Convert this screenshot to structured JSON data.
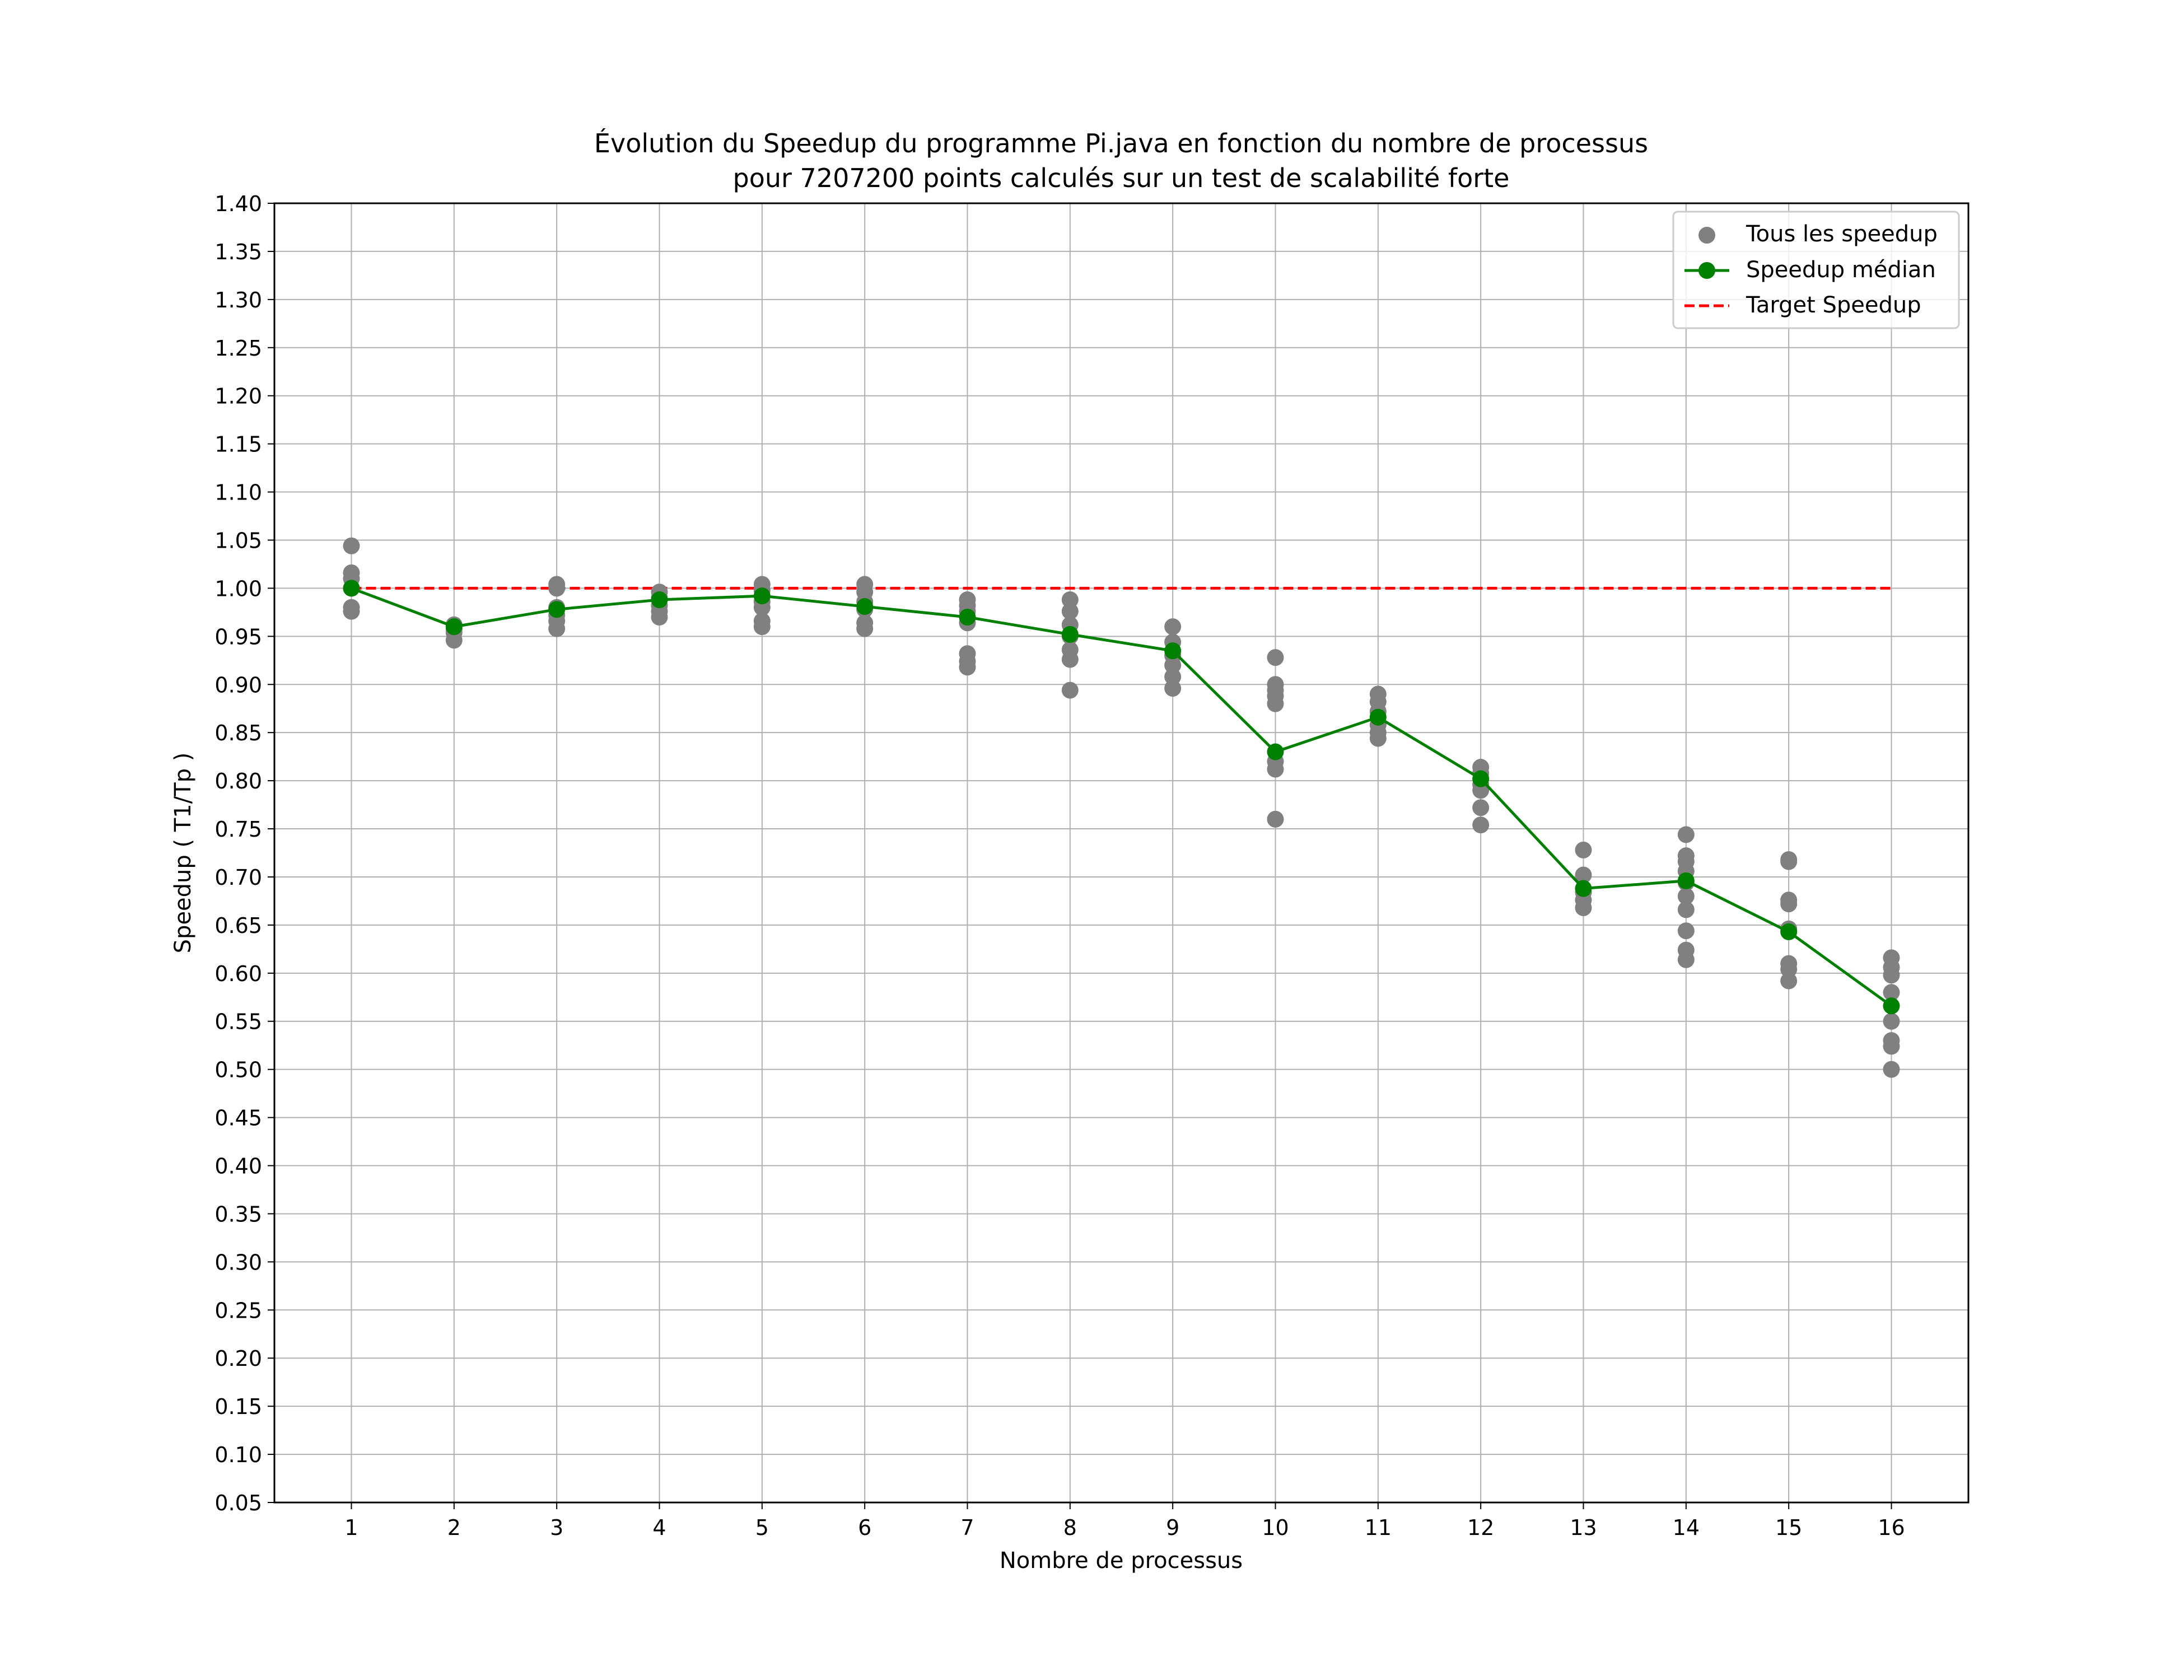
{
  "chart_data": {
    "type": "scatter",
    "title_line1": "Évolution du Speedup du programme Pi.java en fonction du nombre de processus",
    "title_line2": "pour 7207200 points calculés sur un test de scalabilité forte",
    "xlabel": "Nombre de processus",
    "ylabel": "Speedup ( T1/Tp )",
    "x_ticks": [
      1,
      2,
      3,
      4,
      5,
      6,
      7,
      8,
      9,
      10,
      11,
      12,
      13,
      14,
      15,
      16
    ],
    "y_ticks": [
      "0.05",
      "0.10",
      "0.15",
      "0.20",
      "0.25",
      "0.30",
      "0.35",
      "0.40",
      "0.45",
      "0.50",
      "0.55",
      "0.60",
      "0.65",
      "0.70",
      "0.75",
      "0.80",
      "0.85",
      "0.90",
      "0.95",
      "1.00",
      "1.05",
      "1.10",
      "1.15",
      "1.20",
      "1.25",
      "1.30",
      "1.35",
      "1.40"
    ],
    "xlim": [
      0.25,
      16.75
    ],
    "ylim": [
      0.05,
      1.4
    ],
    "grid": true,
    "legend_position": "top-right",
    "series": [
      {
        "name": "Tous les speedup",
        "kind": "scatter",
        "color": "#808080",
        "points": [
          [
            1,
            1.044
          ],
          [
            1,
            1.016
          ],
          [
            1,
            1.01
          ],
          [
            1,
            1.0
          ],
          [
            1,
            0.98
          ],
          [
            1,
            0.976
          ],
          [
            2,
            0.962
          ],
          [
            2,
            0.958
          ],
          [
            2,
            0.954
          ],
          [
            2,
            0.946
          ],
          [
            3,
            1.004
          ],
          [
            3,
            1.0
          ],
          [
            3,
            0.98
          ],
          [
            3,
            0.972
          ],
          [
            3,
            0.966
          ],
          [
            3,
            0.958
          ],
          [
            4,
            0.996
          ],
          [
            4,
            0.99
          ],
          [
            4,
            0.982
          ],
          [
            4,
            0.976
          ],
          [
            4,
            0.97
          ],
          [
            5,
            1.004
          ],
          [
            5,
            0.998
          ],
          [
            5,
            0.986
          ],
          [
            5,
            0.98
          ],
          [
            5,
            0.966
          ],
          [
            5,
            0.96
          ],
          [
            6,
            1.004
          ],
          [
            6,
            0.996
          ],
          [
            6,
            0.986
          ],
          [
            6,
            0.978
          ],
          [
            6,
            0.964
          ],
          [
            6,
            0.958
          ],
          [
            7,
            0.988
          ],
          [
            7,
            0.982
          ],
          [
            7,
            0.976
          ],
          [
            7,
            0.964
          ],
          [
            7,
            0.932
          ],
          [
            7,
            0.924
          ],
          [
            7,
            0.918
          ],
          [
            8,
            0.988
          ],
          [
            8,
            0.976
          ],
          [
            8,
            0.962
          ],
          [
            8,
            0.95
          ],
          [
            8,
            0.936
          ],
          [
            8,
            0.926
          ],
          [
            8,
            0.894
          ],
          [
            9,
            0.96
          ],
          [
            9,
            0.944
          ],
          [
            9,
            0.93
          ],
          [
            9,
            0.92
          ],
          [
            9,
            0.908
          ],
          [
            9,
            0.896
          ],
          [
            10,
            0.928
          ],
          [
            10,
            0.9
          ],
          [
            10,
            0.894
          ],
          [
            10,
            0.888
          ],
          [
            10,
            0.88
          ],
          [
            10,
            0.82
          ],
          [
            10,
            0.812
          ],
          [
            10,
            0.76
          ],
          [
            11,
            0.89
          ],
          [
            11,
            0.882
          ],
          [
            11,
            0.872
          ],
          [
            11,
            0.858
          ],
          [
            11,
            0.85
          ],
          [
            11,
            0.844
          ],
          [
            12,
            0.814
          ],
          [
            12,
            0.808
          ],
          [
            12,
            0.796
          ],
          [
            12,
            0.79
          ],
          [
            12,
            0.772
          ],
          [
            12,
            0.754
          ],
          [
            13,
            0.728
          ],
          [
            13,
            0.702
          ],
          [
            13,
            0.684
          ],
          [
            13,
            0.676
          ],
          [
            13,
            0.668
          ],
          [
            14,
            0.744
          ],
          [
            14,
            0.722
          ],
          [
            14,
            0.716
          ],
          [
            14,
            0.706
          ],
          [
            14,
            0.694
          ],
          [
            14,
            0.68
          ],
          [
            14,
            0.666
          ],
          [
            14,
            0.644
          ],
          [
            14,
            0.624
          ],
          [
            14,
            0.614
          ],
          [
            15,
            0.718
          ],
          [
            15,
            0.716
          ],
          [
            15,
            0.676
          ],
          [
            15,
            0.672
          ],
          [
            15,
            0.646
          ],
          [
            15,
            0.61
          ],
          [
            15,
            0.604
          ],
          [
            15,
            0.592
          ],
          [
            16,
            0.616
          ],
          [
            16,
            0.606
          ],
          [
            16,
            0.598
          ],
          [
            16,
            0.58
          ],
          [
            16,
            0.55
          ],
          [
            16,
            0.53
          ],
          [
            16,
            0.524
          ],
          [
            16,
            0.5
          ]
        ]
      },
      {
        "name": "Speedup médian",
        "kind": "line",
        "marker": "circle",
        "color": "#008000",
        "x": [
          1,
          2,
          3,
          4,
          5,
          6,
          7,
          8,
          9,
          10,
          11,
          12,
          13,
          14,
          15,
          16
        ],
        "y": [
          1.0,
          0.96,
          0.978,
          0.988,
          0.992,
          0.981,
          0.97,
          0.952,
          0.935,
          0.83,
          0.866,
          0.802,
          0.688,
          0.696,
          0.643,
          0.566
        ]
      },
      {
        "name": "Target Speedup",
        "kind": "dashed-line",
        "color": "#ff0000",
        "x": [
          1,
          16
        ],
        "y": [
          1.0,
          1.0
        ]
      }
    ]
  }
}
